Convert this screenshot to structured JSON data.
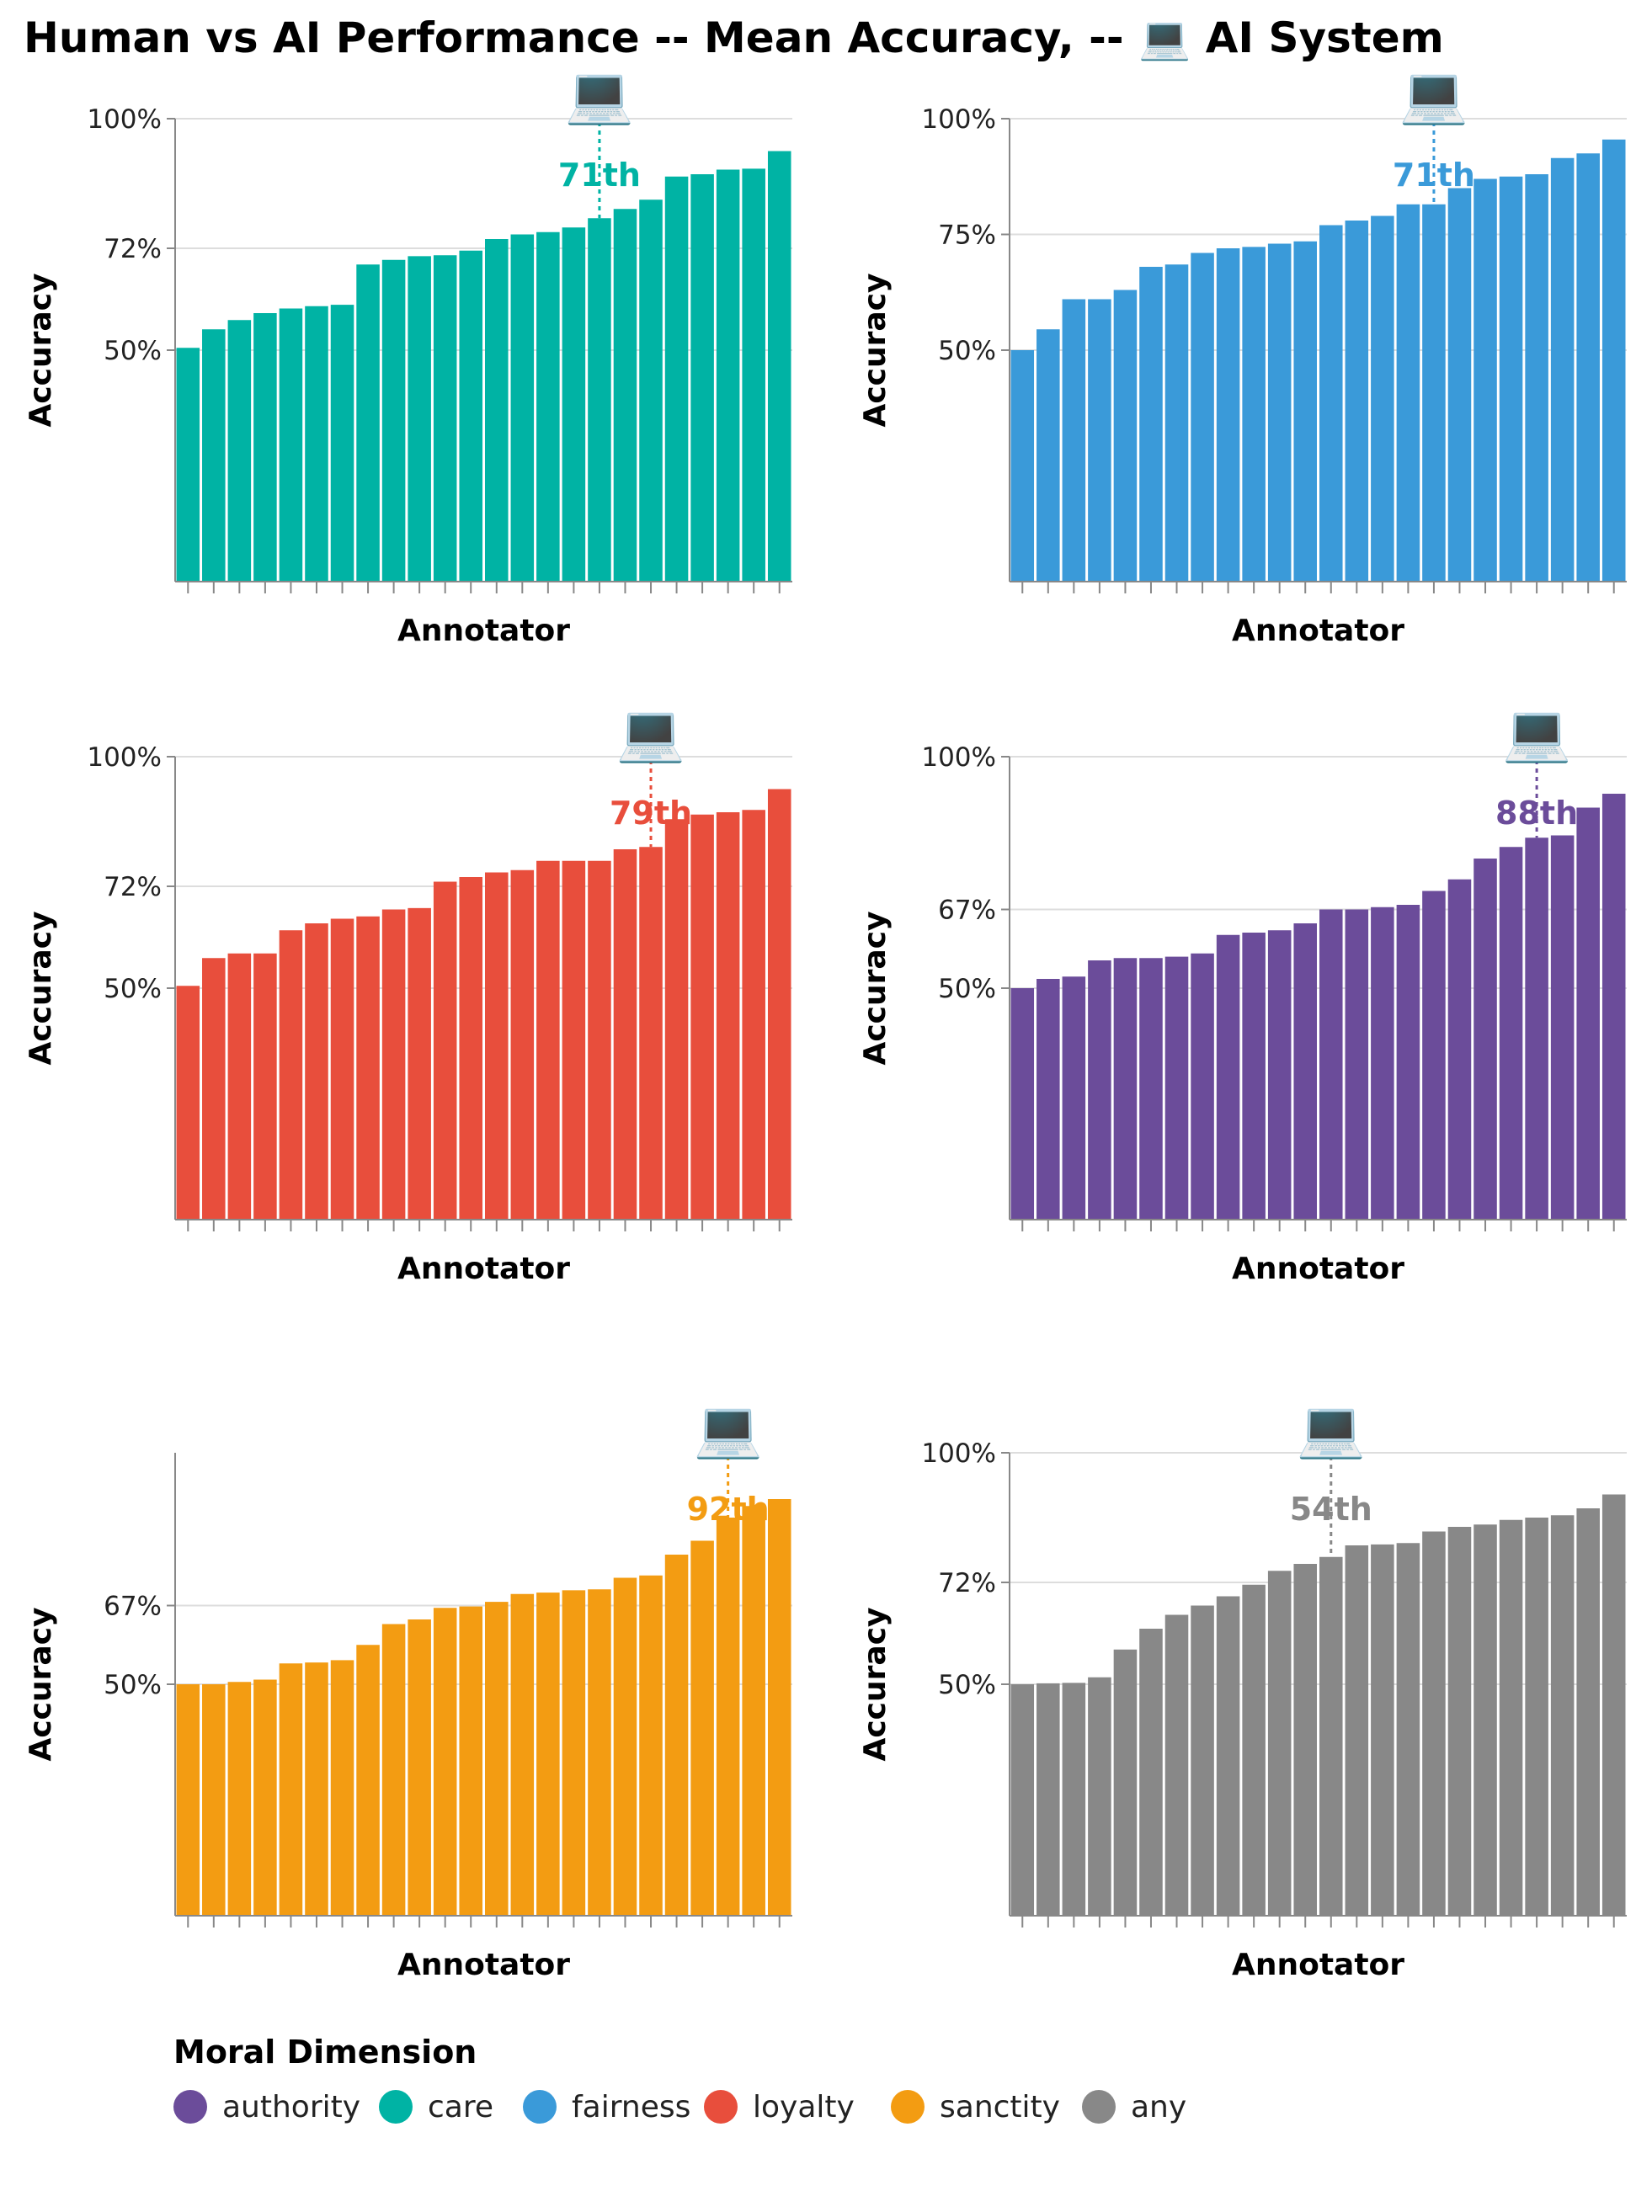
{
  "chart_data": {
    "type": "bar",
    "title": "Human vs AI Performance -- Mean Accuracy, -- 💻 AI System",
    "legend": {
      "title": "Moral Dimension",
      "placement": "bottom-left",
      "entries": [
        {
          "label": "authority",
          "color": "#6b4c9a"
        },
        {
          "label": "care",
          "color": "#00b3a4"
        },
        {
          "label": "fairness",
          "color": "#3a9ad9"
        },
        {
          "label": "loyalty",
          "color": "#e84e3c"
        },
        {
          "label": "sanctity",
          "color": "#f39c12"
        },
        {
          "label": "any",
          "color": "#888888"
        }
      ]
    },
    "panels": [
      {
        "dimension": "care",
        "color": "#00b3a4",
        "xlabel": "Annotator",
        "ylabel": "Accuracy",
        "ylim": [
          0,
          100
        ],
        "yticks": [
          50,
          72,
          100
        ],
        "ytick_labels": [
          "50%",
          "72%",
          "100%"
        ],
        "values": [
          50.5,
          54.5,
          56.5,
          58,
          59,
          59.5,
          59.8,
          68.5,
          69.5,
          70.3,
          70.5,
          71.5,
          74,
          75,
          75.5,
          76.5,
          78.5,
          80.5,
          82.5,
          87.5,
          88,
          89,
          89.2,
          93
        ],
        "ai_percentile": "71th",
        "ai_position": 16.5,
        "ai_icon": "💻"
      },
      {
        "dimension": "fairness",
        "color": "#3a9ad9",
        "xlabel": "Annotator",
        "ylabel": "Accuracy",
        "ylim": [
          0,
          100
        ],
        "yticks": [
          50,
          75,
          100
        ],
        "ytick_labels": [
          "50%",
          "75%",
          "100%"
        ],
        "values": [
          50,
          54.5,
          61,
          61,
          63,
          68,
          68.5,
          71,
          72,
          72.3,
          73,
          73.5,
          77,
          78,
          79,
          81.5,
          81.5,
          85,
          87,
          87.5,
          88,
          91.5,
          92.5,
          95.5
        ],
        "ai_percentile": "71th",
        "ai_position": 16.5,
        "ai_icon": "💻"
      },
      {
        "dimension": "loyalty",
        "color": "#e84e3c",
        "xlabel": "Annotator",
        "ylabel": "Accuracy",
        "ylim": [
          0,
          100
        ],
        "yticks": [
          50,
          72,
          100
        ],
        "ytick_labels": [
          "50%",
          "72%",
          "100%"
        ],
        "values": [
          50.5,
          56.5,
          57.5,
          57.5,
          62.5,
          64,
          65,
          65.5,
          67,
          67.3,
          73,
          74,
          75,
          75.5,
          77.5,
          77.5,
          77.5,
          80,
          80.5,
          86.5,
          87.5,
          88,
          88.5,
          93
        ],
        "ai_percentile": "79th",
        "ai_position": 18.5,
        "ai_icon": "💻"
      },
      {
        "dimension": "authority",
        "color": "#6b4c9a",
        "xlabel": "Annotator",
        "ylabel": "Accuracy",
        "ylim": [
          0,
          100
        ],
        "yticks": [
          50,
          67,
          100
        ],
        "ytick_labels": [
          "50%",
          "67%",
          "100%"
        ],
        "values": [
          50,
          52,
          52.5,
          56,
          56.5,
          56.5,
          56.8,
          57.5,
          61.5,
          62,
          62.5,
          64,
          67,
          67,
          67.5,
          68,
          71,
          73.5,
          78,
          80.5,
          82.5,
          83,
          89,
          92
        ],
        "ai_percentile": "88th",
        "ai_position": 20.5,
        "ai_icon": "💻"
      },
      {
        "dimension": "sanctity",
        "color": "#f39c12",
        "xlabel": "Annotator",
        "ylabel": "Accuracy",
        "ylim": [
          0,
          100
        ],
        "yticks": [
          50,
          67
        ],
        "ytick_labels": [
          "50%",
          "67%"
        ],
        "values": [
          50,
          50,
          50.5,
          51,
          54.5,
          54.7,
          55.2,
          58.5,
          63,
          64,
          66.5,
          66.8,
          67.8,
          69.5,
          69.8,
          70.3,
          70.5,
          73,
          73.5,
          78,
          81,
          86,
          88.5,
          90
        ],
        "ai_percentile": "92th",
        "ai_position": 21.5,
        "ai_icon": "💻"
      },
      {
        "dimension": "any",
        "color": "#888888",
        "xlabel": "Annotator",
        "ylabel": "Accuracy",
        "ylim": [
          0,
          100
        ],
        "yticks": [
          50,
          72,
          100
        ],
        "ytick_labels": [
          "50%",
          "72%",
          "100%"
        ],
        "values": [
          50,
          50.2,
          50.3,
          51.5,
          57.5,
          62,
          65,
          67,
          69,
          71.5,
          74.5,
          76,
          77.5,
          80,
          80.2,
          80.5,
          83,
          84,
          84.5,
          85.5,
          86,
          86.5,
          88,
          91
        ],
        "ai_percentile": "54th",
        "ai_position": 12.5,
        "ai_icon": "💻"
      }
    ]
  }
}
